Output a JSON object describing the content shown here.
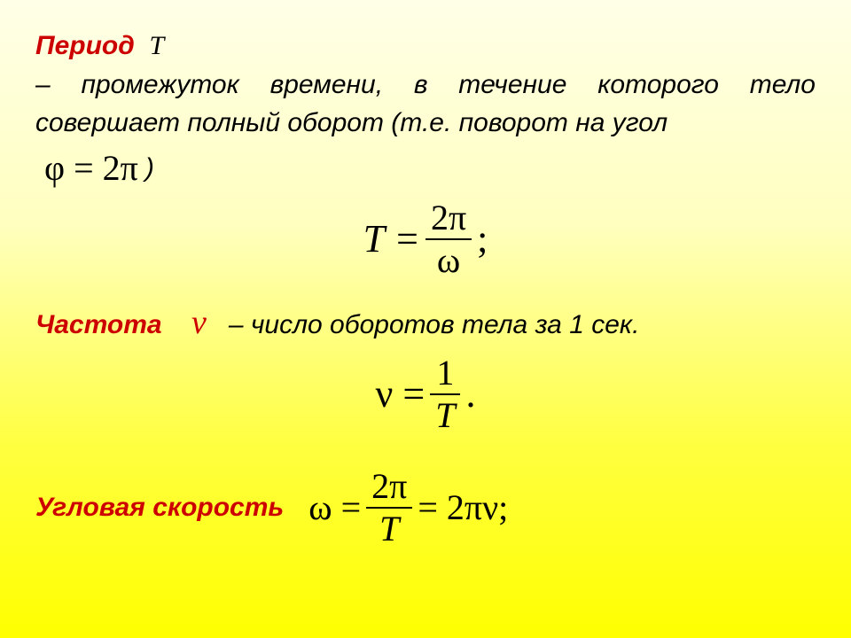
{
  "colors": {
    "term": "#cc0000",
    "text": "#000000",
    "bg_top": "#ffffe8",
    "bg_bottom": "#ffff00"
  },
  "period": {
    "term": "Период",
    "sym": "T",
    "def_a": "– промежуток времени, в течение которого тело совершает полный оборот (т.е. поворот на угол",
    "def_b": ")",
    "phi": "φ = 2π",
    "formula_lhs": "T =",
    "formula_num": "2π",
    "formula_den": "ω",
    "formula_tail": ";"
  },
  "freq": {
    "term": "Частота",
    "sym": "ν",
    "def": "– число оборотов тела за 1 сек.",
    "formula_lhs": "ν =",
    "formula_num": "1",
    "formula_den": "T",
    "formula_tail": "."
  },
  "angvel": {
    "term": "Угловая скорость",
    "formula_lhs": "ω =",
    "formula_num": "2π",
    "formula_den": "T",
    "formula_mid": "= 2πν;",
    "formula_tail": ""
  }
}
